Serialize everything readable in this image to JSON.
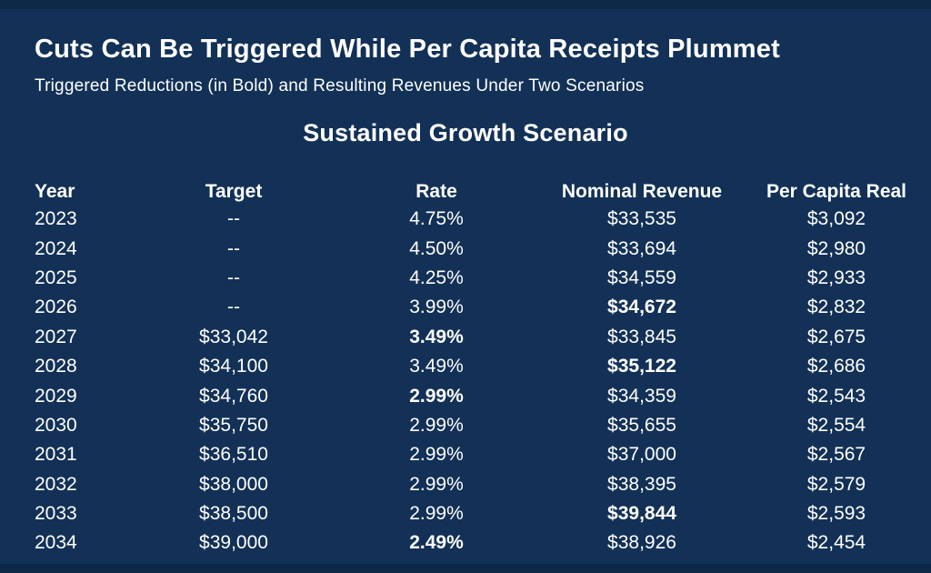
{
  "header": {
    "title": "Cuts Can Be Triggered While Per Capita Receipts Plummet",
    "subtitle": "Triggered Reductions (in Bold) and Resulting Revenues Under Two Scenarios"
  },
  "section": {
    "title": "Sustained Growth Scenario"
  },
  "colors": {
    "background": "#133156",
    "edge_band": "#0d2847",
    "text": "#ffffff"
  },
  "chart_data": {
    "type": "table",
    "title": "Cuts Can Be Triggered While Per Capita Receipts Plummet",
    "subtitle": "Triggered Reductions (in Bold) and Resulting Revenues Under Two Scenarios",
    "section_title": "Sustained Growth Scenario",
    "columns": [
      "Year",
      "Target",
      "Rate",
      "Nominal Revenue",
      "Per Capita Real"
    ],
    "column_keys": [
      "year",
      "target",
      "rate",
      "nominal_revenue",
      "per_capita_real"
    ],
    "rows": [
      {
        "year": "2023",
        "target": "--",
        "rate": "4.75%",
        "nominal_revenue": "$33,535",
        "per_capita_real": "$3,092",
        "bold_cells": []
      },
      {
        "year": "2024",
        "target": "--",
        "rate": "4.50%",
        "nominal_revenue": "$33,694",
        "per_capita_real": "$2,980",
        "bold_cells": []
      },
      {
        "year": "2025",
        "target": "--",
        "rate": "4.25%",
        "nominal_revenue": "$34,559",
        "per_capita_real": "$2,933",
        "bold_cells": []
      },
      {
        "year": "2026",
        "target": "--",
        "rate": "3.99%",
        "nominal_revenue": "$34,672",
        "per_capita_real": "$2,832",
        "bold_cells": [
          "nominal_revenue"
        ]
      },
      {
        "year": "2027",
        "target": "$33,042",
        "rate": "3.49%",
        "nominal_revenue": "$33,845",
        "per_capita_real": "$2,675",
        "bold_cells": [
          "rate"
        ]
      },
      {
        "year": "2028",
        "target": "$34,100",
        "rate": "3.49%",
        "nominal_revenue": "$35,122",
        "per_capita_real": "$2,686",
        "bold_cells": [
          "nominal_revenue"
        ]
      },
      {
        "year": "2029",
        "target": "$34,760",
        "rate": "2.99%",
        "nominal_revenue": "$34,359",
        "per_capita_real": "$2,543",
        "bold_cells": [
          "rate"
        ]
      },
      {
        "year": "2030",
        "target": "$35,750",
        "rate": "2.99%",
        "nominal_revenue": "$35,655",
        "per_capita_real": "$2,554",
        "bold_cells": []
      },
      {
        "year": "2031",
        "target": "$36,510",
        "rate": "2.99%",
        "nominal_revenue": "$37,000",
        "per_capita_real": "$2,567",
        "bold_cells": []
      },
      {
        "year": "2032",
        "target": "$38,000",
        "rate": "2.99%",
        "nominal_revenue": "$38,395",
        "per_capita_real": "$2,579",
        "bold_cells": []
      },
      {
        "year": "2033",
        "target": "$38,500",
        "rate": "2.99%",
        "nominal_revenue": "$39,844",
        "per_capita_real": "$2,593",
        "bold_cells": [
          "nominal_revenue"
        ]
      },
      {
        "year": "2034",
        "target": "$39,000",
        "rate": "2.49%",
        "nominal_revenue": "$38,926",
        "per_capita_real": "$2,454",
        "bold_cells": [
          "rate"
        ]
      }
    ]
  }
}
